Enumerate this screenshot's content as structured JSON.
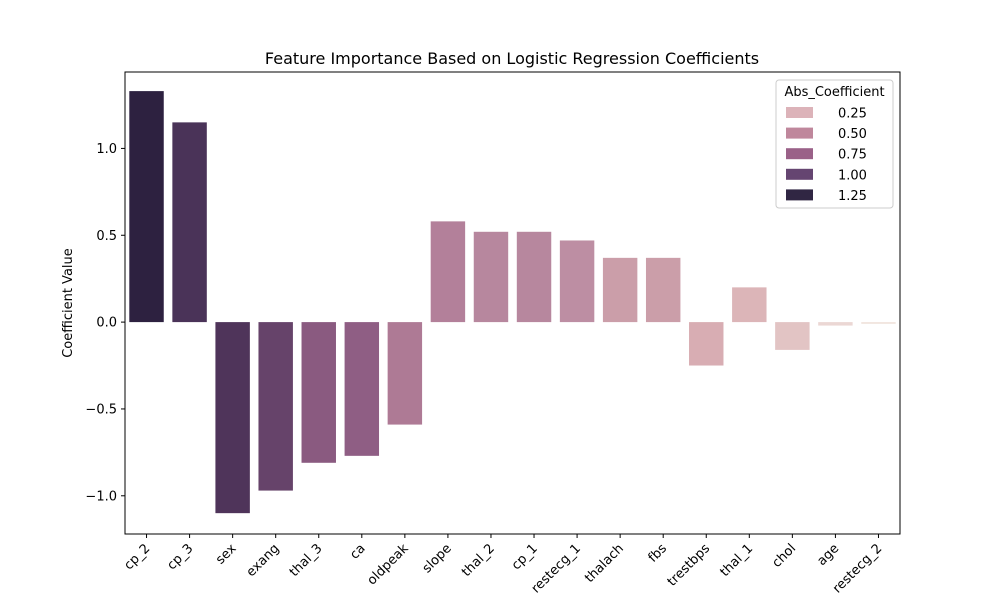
{
  "chart_data": {
    "type": "bar",
    "title": "Feature Importance Based on Logistic Regression Coefficients",
    "xlabel": "",
    "ylabel": "Coefficient Value",
    "ylim": [
      -1.22,
      1.44
    ],
    "yticks": [
      -1.0,
      -0.5,
      0.0,
      0.5,
      1.0
    ],
    "ytick_labels": [
      "−1.0",
      "−0.5",
      "0.0",
      "0.5",
      "1.0"
    ],
    "grid": false,
    "categories": [
      "cp_2",
      "cp_3",
      "sex",
      "exang",
      "thal_3",
      "ca",
      "oldpeak",
      "slope",
      "thal_2",
      "cp_1",
      "restecg_1",
      "thalach",
      "fbs",
      "trestbps",
      "thal_1",
      "chol",
      "age",
      "restecg_2"
    ],
    "values": [
      1.33,
      1.15,
      -1.1,
      -0.97,
      -0.81,
      -0.77,
      -0.59,
      0.58,
      0.52,
      0.52,
      0.47,
      0.37,
      0.37,
      -0.25,
      0.2,
      -0.16,
      -0.02,
      -0.01
    ],
    "colors": [
      "#2d2140",
      "#4a3358",
      "#4f345a",
      "#66436a",
      "#8a5a80",
      "#8f5e84",
      "#ae7a95",
      "#b3809a",
      "#b7879e",
      "#b7879e",
      "#bd8ea3",
      "#cb9ea9",
      "#cb9ea9",
      "#d8adb3",
      "#dcb5b8",
      "#e2c4c4",
      "#ebd7d4",
      "#f0e3dd"
    ],
    "legend": {
      "title": "Abs_Coefficient",
      "placement": "top-right",
      "entries": [
        {
          "label": "0.25",
          "color": "#dcb3b9"
        },
        {
          "label": "0.50",
          "color": "#bf879c"
        },
        {
          "label": "0.75",
          "color": "#9a6188"
        },
        {
          "label": "1.00",
          "color": "#654571"
        },
        {
          "label": "1.25",
          "color": "#302643"
        }
      ]
    }
  }
}
